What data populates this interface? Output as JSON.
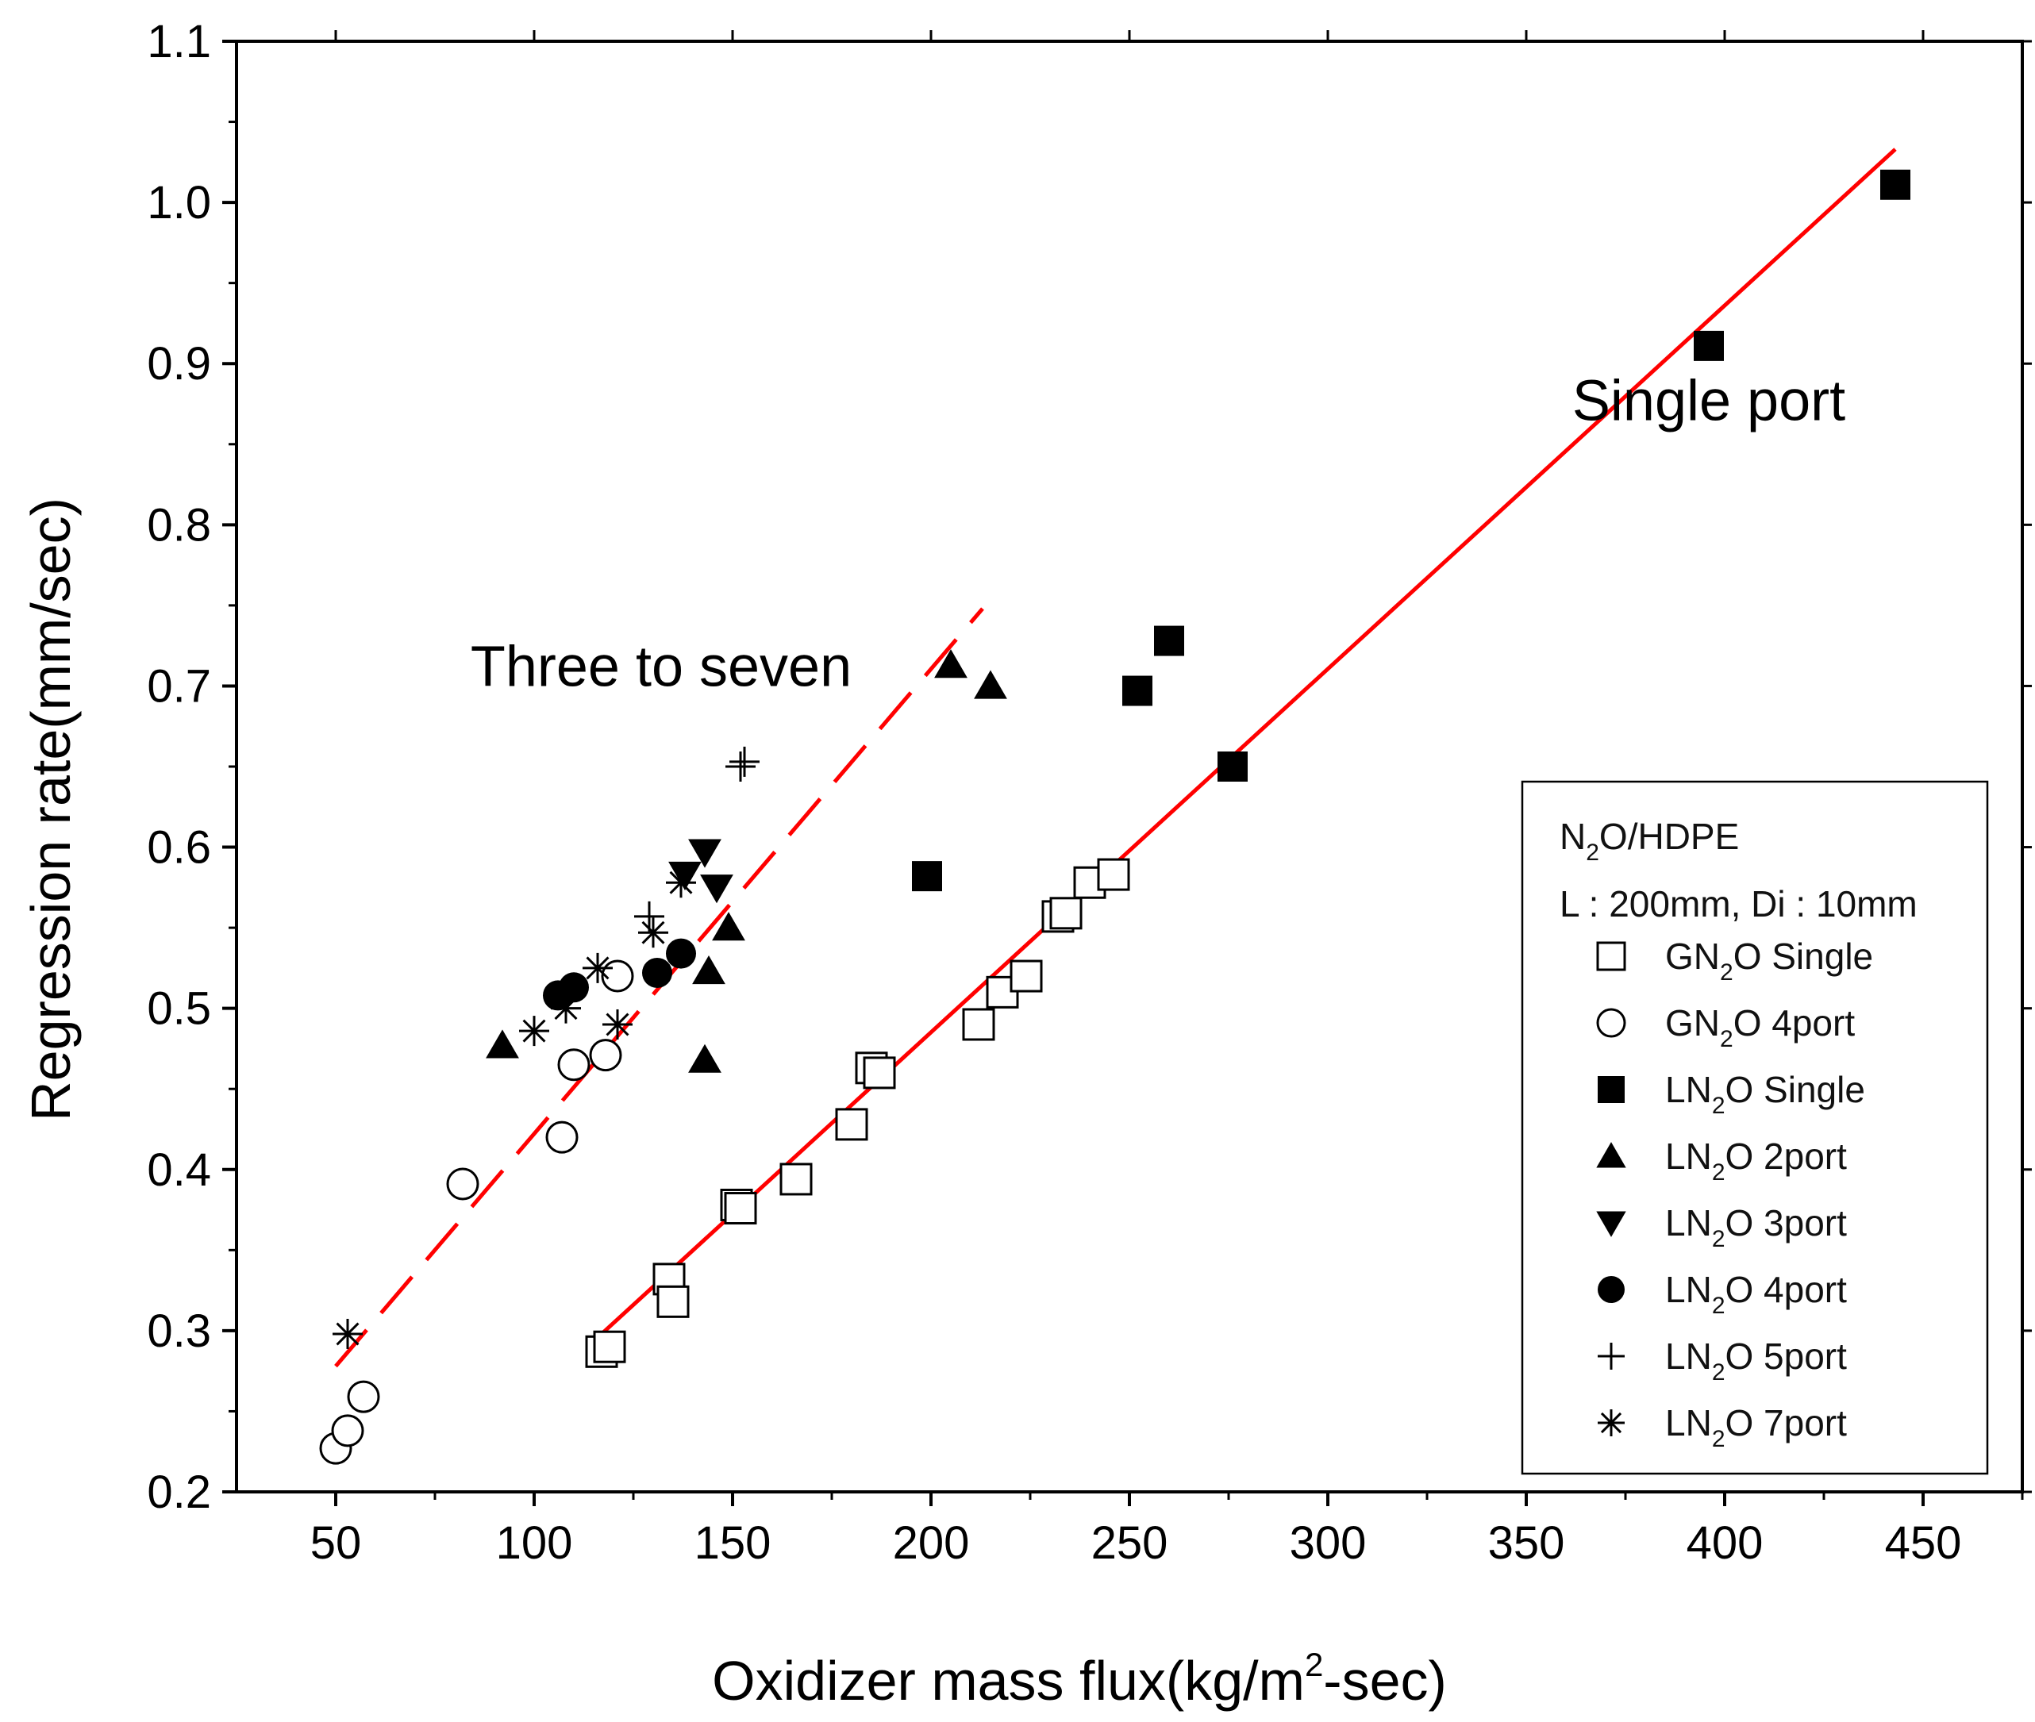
{
  "chart_data": {
    "type": "scatter",
    "title": "",
    "xlabel": {
      "prefix": "Oxidizer mass flux(kg/m",
      "sup": "2",
      "suffix": "-sec)"
    },
    "ylabel": "Regression rate(mm/sec)",
    "xlim": [
      25,
      475
    ],
    "ylim": [
      0.2,
      1.1
    ],
    "xticks": [
      50,
      100,
      150,
      200,
      250,
      300,
      350,
      400,
      450
    ],
    "xtick_labels": [
      "50",
      "100",
      "150",
      "200",
      "250",
      "300",
      "350",
      "400",
      "450"
    ],
    "yticks": [
      0.2,
      0.3,
      0.4,
      0.5,
      0.6,
      0.7,
      0.8,
      0.9,
      1.0,
      1.1
    ],
    "ytick_labels": [
      "0.2",
      "0.3",
      "0.4",
      "0.5",
      "0.6",
      "0.7",
      "0.8",
      "0.9",
      "1.0",
      "1.1"
    ],
    "grid": false,
    "legend_position": "bottom-right",
    "legend_header": {
      "line1": {
        "pre": "N",
        "sub": "2",
        "post": "O/HDPE"
      },
      "line2": "L : 200mm, Di : 10mm"
    },
    "annotations": [
      {
        "text": "Three to seven",
        "x": 132,
        "y": 0.7
      },
      {
        "text": "Single port",
        "x": 396,
        "y": 0.865
      }
    ],
    "fit_lines": [
      {
        "name": "Single port fit",
        "style": "solid",
        "color": "#ff0000",
        "x": [
          117,
          443
        ],
        "y": [
          0.298,
          1.033
        ]
      },
      {
        "name": "Three to seven fit",
        "style": "dashed",
        "color": "#ff0000",
        "x": [
          50,
          213
        ],
        "y": [
          0.278,
          0.748
        ]
      }
    ],
    "series": [
      {
        "name": "GN2O Single",
        "pre": "GN",
        "sub": "2",
        "post": "O Single",
        "marker": "square-open",
        "points": [
          [
            117,
            0.287
          ],
          [
            119,
            0.29
          ],
          [
            134,
            0.332
          ],
          [
            135,
            0.318
          ],
          [
            151,
            0.378
          ],
          [
            152,
            0.376
          ],
          [
            166,
            0.394
          ],
          [
            180,
            0.428
          ],
          [
            185,
            0.463
          ],
          [
            187,
            0.46
          ],
          [
            212,
            0.49
          ],
          [
            218,
            0.51
          ],
          [
            224,
            0.52
          ],
          [
            232,
            0.557
          ],
          [
            234,
            0.559
          ],
          [
            240,
            0.578
          ],
          [
            246,
            0.583
          ]
        ]
      },
      {
        "name": "GN2O 4port",
        "pre": "GN",
        "sub": "2",
        "post": "O 4port",
        "marker": "circle-open",
        "points": [
          [
            50,
            0.227
          ],
          [
            53,
            0.238
          ],
          [
            57,
            0.259
          ],
          [
            82,
            0.391
          ],
          [
            107,
            0.42
          ],
          [
            110,
            0.465
          ],
          [
            118,
            0.471
          ],
          [
            121,
            0.52
          ]
        ]
      },
      {
        "name": "LN2O Single",
        "pre": "LN",
        "sub": "2",
        "post": "O Single",
        "marker": "square-filled",
        "points": [
          [
            199,
            0.582
          ],
          [
            252,
            0.697
          ],
          [
            260,
            0.728
          ],
          [
            276,
            0.65
          ],
          [
            396,
            0.911
          ],
          [
            443,
            1.011
          ]
        ]
      },
      {
        "name": "LN2O 2port",
        "pre": "LN",
        "sub": "2",
        "post": "O 2port",
        "marker": "triangle-up",
        "points": [
          [
            92,
            0.477
          ],
          [
            143,
            0.468
          ],
          [
            144,
            0.523
          ],
          [
            149,
            0.55
          ],
          [
            205,
            0.713
          ],
          [
            215,
            0.7
          ]
        ]
      },
      {
        "name": "LN2O 3port",
        "pre": "LN",
        "sub": "2",
        "post": "O 3port",
        "marker": "triangle-down",
        "points": [
          [
            138,
            0.583
          ],
          [
            143,
            0.597
          ],
          [
            146,
            0.575
          ]
        ]
      },
      {
        "name": "LN2O 4port",
        "pre": "LN",
        "sub": "2",
        "post": "O 4port",
        "marker": "circle-filled",
        "points": [
          [
            106,
            0.508
          ],
          [
            110,
            0.513
          ],
          [
            131,
            0.522
          ],
          [
            137,
            0.534
          ]
        ]
      },
      {
        "name": "LN2O 5port",
        "pre": "LN",
        "sub": "2",
        "post": "O 5port",
        "marker": "plus",
        "points": [
          [
            129,
            0.557
          ],
          [
            152,
            0.65
          ],
          [
            153,
            0.653
          ]
        ]
      },
      {
        "name": "LN2O 7port",
        "pre": "LN",
        "sub": "2",
        "post": "O 7port",
        "marker": "asterisk",
        "points": [
          [
            53,
            0.298
          ],
          [
            100,
            0.486
          ],
          [
            108,
            0.5
          ],
          [
            116,
            0.525
          ],
          [
            121,
            0.49
          ],
          [
            130,
            0.547
          ],
          [
            137,
            0.578
          ]
        ]
      }
    ]
  }
}
